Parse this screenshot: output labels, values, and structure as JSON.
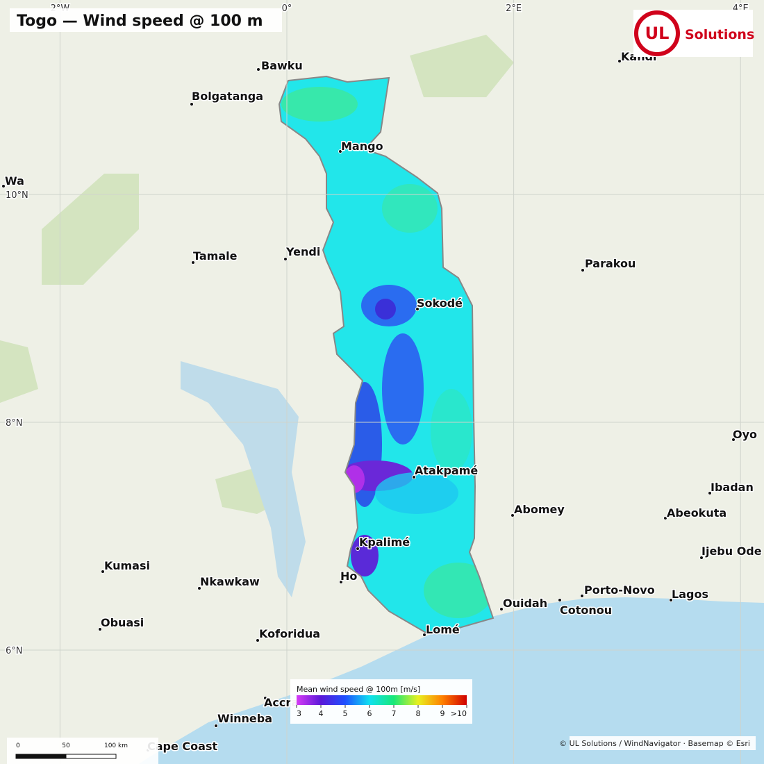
{
  "title": "Togo — Wind speed @ 100 m",
  "logo": {
    "mark": "UL",
    "text": "Solutions"
  },
  "graticule": {
    "lons": [
      {
        "value": -2,
        "label": "2°W"
      },
      {
        "value": 0,
        "label": "0°"
      },
      {
        "value": 2,
        "label": "2°E"
      },
      {
        "value": 4,
        "label": "4°E"
      }
    ],
    "lats": [
      {
        "value": 10,
        "label": "10°N"
      },
      {
        "value": 8,
        "label": "8°N"
      },
      {
        "value": 6,
        "label": "6°N"
      }
    ]
  },
  "cities": [
    "Bawku",
    "Bolgatanga",
    "Mango",
    "Wa",
    "Tamale",
    "Yendi",
    "Sokodé",
    "Parakou",
    "Kandi",
    "Oyo",
    "Ibadan",
    "Atakpamé",
    "Abomey",
    "Abeokuta",
    "Kpalimé",
    "Ijebu Ode",
    "Kumasi",
    "Nkawkaw",
    "Ho",
    "Porto-Novo",
    "Lagos",
    "Ouidah",
    "Cotonou",
    "Obuasi",
    "Koforidua",
    "Lomé",
    "Accra",
    "Winneba",
    "Cape Coast"
  ],
  "legend": {
    "title": "Mean wind speed @ 100m [m/s]",
    "ticks": [
      3,
      4,
      5,
      6,
      7,
      8,
      9,
      {
        "value": 10,
        "label": ">10"
      }
    ],
    "colors": [
      "#d63cf5",
      "#5a18d8",
      "#1e50ff",
      "#10e0f0",
      "#18e878",
      "#e8f020",
      "#ff8000",
      "#d00000"
    ]
  },
  "scale_bar": {
    "ticks": [
      0,
      50,
      {
        "value": 100,
        "label": "100 km"
      }
    ]
  },
  "attribution": "© UL Solutions / WindNavigator · Basemap © Esri"
}
